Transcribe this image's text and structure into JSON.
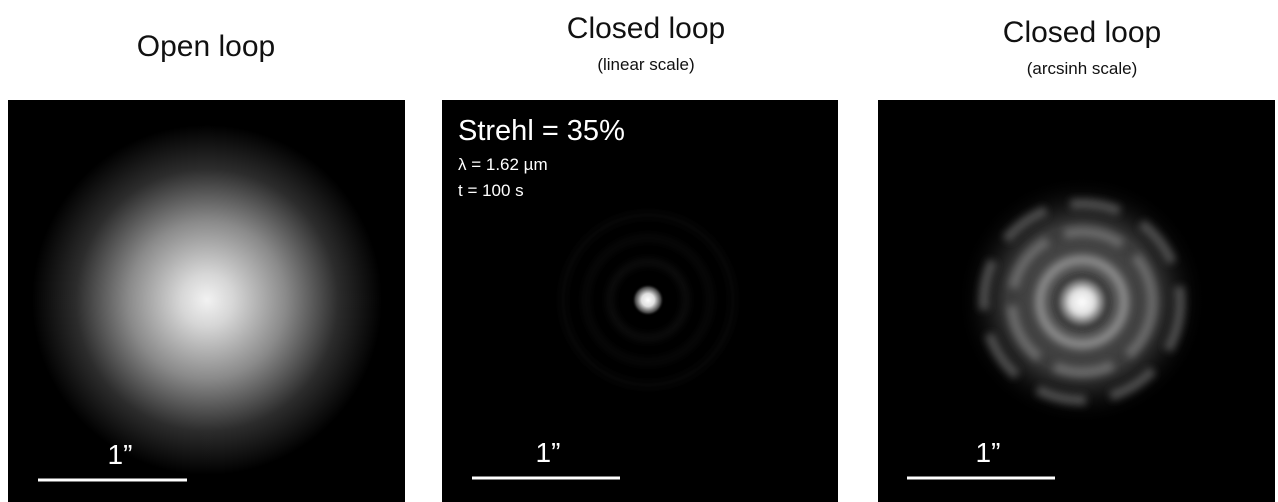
{
  "panels": [
    {
      "title": "Open loop",
      "scale_bar_label": "1”"
    },
    {
      "title": "Closed loop",
      "subtitle": "(linear scale)",
      "annotations": [
        "Strehl = 35%",
        "λ = 1.62 µm",
        "t = 100 s"
      ],
      "scale_bar_label": "1”"
    },
    {
      "title": "Closed loop",
      "subtitle": "(arcsinh scale)",
      "scale_bar_label": "1”"
    }
  ]
}
